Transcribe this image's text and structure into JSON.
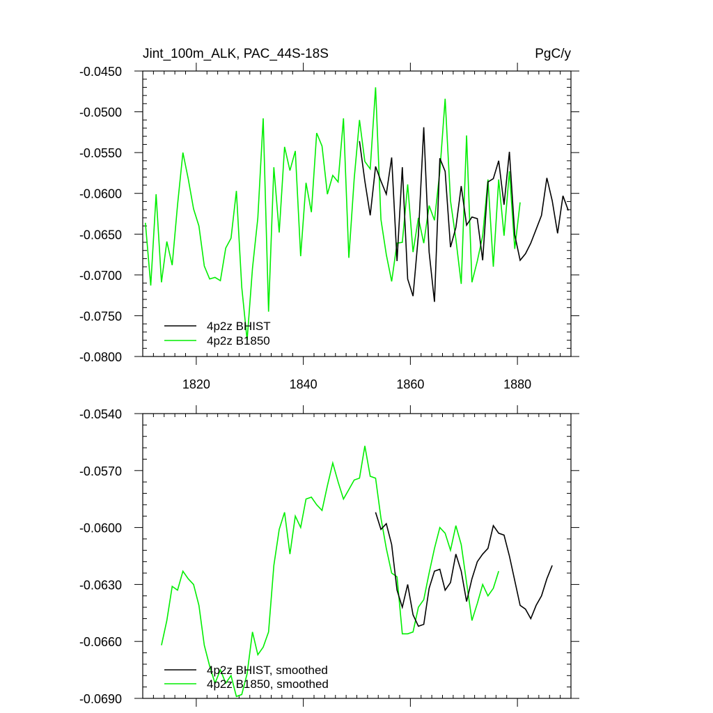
{
  "chart_data": [
    {
      "type": "line",
      "title": "Jint_100m_ALK, PAC_44S-18S",
      "units": "PgC/y",
      "xlabel": "",
      "ylabel": "",
      "xlim": [
        1810,
        1890
      ],
      "ylim": [
        -0.08,
        -0.045
      ],
      "x_ticks": [
        1820,
        1840,
        1860,
        1880
      ],
      "x_tick_labels": [
        "1820",
        "1840",
        "1860",
        "1880"
      ],
      "y_ticks": [
        -0.08,
        -0.075,
        -0.07,
        -0.065,
        -0.06,
        -0.055,
        -0.05,
        -0.045
      ],
      "y_tick_labels": [
        "-0.0800",
        "-0.0750",
        "-0.0700",
        "-0.0650",
        "-0.0600",
        "-0.0550",
        "-0.0500",
        "-0.0450"
      ],
      "grid": false,
      "legend_position": "bottom-left",
      "series": [
        {
          "name": "4p2z BHIST",
          "color": "#000000",
          "x_start": 1850.5,
          "values": [
            -0.0536,
            -0.0585,
            -0.0627,
            -0.0567,
            -0.0585,
            -0.0601,
            -0.0556,
            -0.0683,
            -0.0568,
            -0.0705,
            -0.0726,
            -0.0651,
            -0.0519,
            -0.0672,
            -0.0733,
            -0.0557,
            -0.0573,
            -0.0666,
            -0.0642,
            -0.0591,
            -0.0639,
            -0.0629,
            -0.0631,
            -0.0682,
            -0.0586,
            -0.0582,
            -0.056,
            -0.0614,
            -0.0549,
            -0.0651,
            -0.0682,
            -0.0674,
            -0.0661,
            -0.0644,
            -0.0627,
            -0.0581,
            -0.0609,
            -0.0649,
            -0.0603,
            -0.0621
          ]
        },
        {
          "name": "4p2z B1850",
          "color": "#00ee00",
          "x_start": 1810.5,
          "values": [
            -0.0636,
            -0.0713,
            -0.0601,
            -0.0709,
            -0.0659,
            -0.0688,
            -0.0614,
            -0.055,
            -0.0582,
            -0.0619,
            -0.064,
            -0.0689,
            -0.0705,
            -0.0703,
            -0.0707,
            -0.0667,
            -0.0655,
            -0.0597,
            -0.0715,
            -0.078,
            -0.0692,
            -0.063,
            -0.0508,
            -0.0745,
            -0.0568,
            -0.0648,
            -0.0543,
            -0.0572,
            -0.0548,
            -0.0677,
            -0.0587,
            -0.0623,
            -0.0526,
            -0.0542,
            -0.0601,
            -0.0578,
            -0.0586,
            -0.0508,
            -0.0679,
            -0.0582,
            -0.051,
            -0.0561,
            -0.057,
            -0.047,
            -0.0632,
            -0.0675,
            -0.0708,
            -0.0661,
            -0.066,
            -0.0589,
            -0.0672,
            -0.063,
            -0.0661,
            -0.0615,
            -0.0633,
            -0.0573,
            -0.0484,
            -0.0609,
            -0.0656,
            -0.0711,
            -0.0529,
            -0.0709,
            -0.0683,
            -0.0652,
            -0.0583,
            -0.069,
            -0.0583,
            -0.0652,
            -0.0573,
            -0.0668,
            -0.0611
          ]
        }
      ]
    },
    {
      "type": "line",
      "title": "",
      "xlabel": "",
      "ylabel": "",
      "xlim": [
        1810,
        1890
      ],
      "ylim": [
        -0.069,
        -0.054
      ],
      "x_ticks": [
        1820,
        1840,
        1860,
        1880
      ],
      "x_tick_labels": [],
      "y_ticks": [
        -0.069,
        -0.066,
        -0.063,
        -0.06,
        -0.057,
        -0.054
      ],
      "y_tick_labels": [
        "-0.0690",
        "-0.0660",
        "-0.0630",
        "-0.0600",
        "-0.0570",
        "-0.0540"
      ],
      "grid": false,
      "legend_position": "bottom-left",
      "series": [
        {
          "name": "4p2z BHIST, smoothed",
          "color": "#000000",
          "x_start": 1853.5,
          "values": [
            -0.0592,
            -0.0601,
            -0.0598,
            -0.0609,
            -0.0633,
            -0.0642,
            -0.063,
            -0.0646,
            -0.0652,
            -0.0651,
            -0.0632,
            -0.0623,
            -0.0622,
            -0.0633,
            -0.0629,
            -0.0614,
            -0.0623,
            -0.0639,
            -0.0627,
            -0.0618,
            -0.0614,
            -0.0611,
            -0.0599,
            -0.0603,
            -0.0604,
            -0.0615,
            -0.0628,
            -0.0641,
            -0.0643,
            -0.0648,
            -0.0641,
            -0.0636,
            -0.0627,
            -0.062
          ]
        },
        {
          "name": "4p2z B1850, smoothed",
          "color": "#00ee00",
          "x_start": 1813.5,
          "values": [
            -0.0662,
            -0.0649,
            -0.0631,
            -0.0633,
            -0.0623,
            -0.0627,
            -0.063,
            -0.0641,
            -0.0662,
            -0.0673,
            -0.0682,
            -0.0675,
            -0.0682,
            -0.0678,
            -0.0689,
            -0.0688,
            -0.0677,
            -0.0655,
            -0.0667,
            -0.0663,
            -0.0655,
            -0.062,
            -0.0601,
            -0.0592,
            -0.0614,
            -0.0594,
            -0.06,
            -0.0585,
            -0.0584,
            -0.0588,
            -0.0591,
            -0.0578,
            -0.0566,
            -0.0576,
            -0.0585,
            -0.058,
            -0.0575,
            -0.0574,
            -0.0557,
            -0.0573,
            -0.0574,
            -0.0595,
            -0.0611,
            -0.0624,
            -0.0626,
            -0.0656,
            -0.0656,
            -0.0655,
            -0.0642,
            -0.0638,
            -0.0624,
            -0.0611,
            -0.06,
            -0.0603,
            -0.0612,
            -0.0599,
            -0.0609,
            -0.0629,
            -0.0649,
            -0.064,
            -0.063,
            -0.0636,
            -0.0632,
            -0.0623
          ]
        }
      ]
    }
  ]
}
